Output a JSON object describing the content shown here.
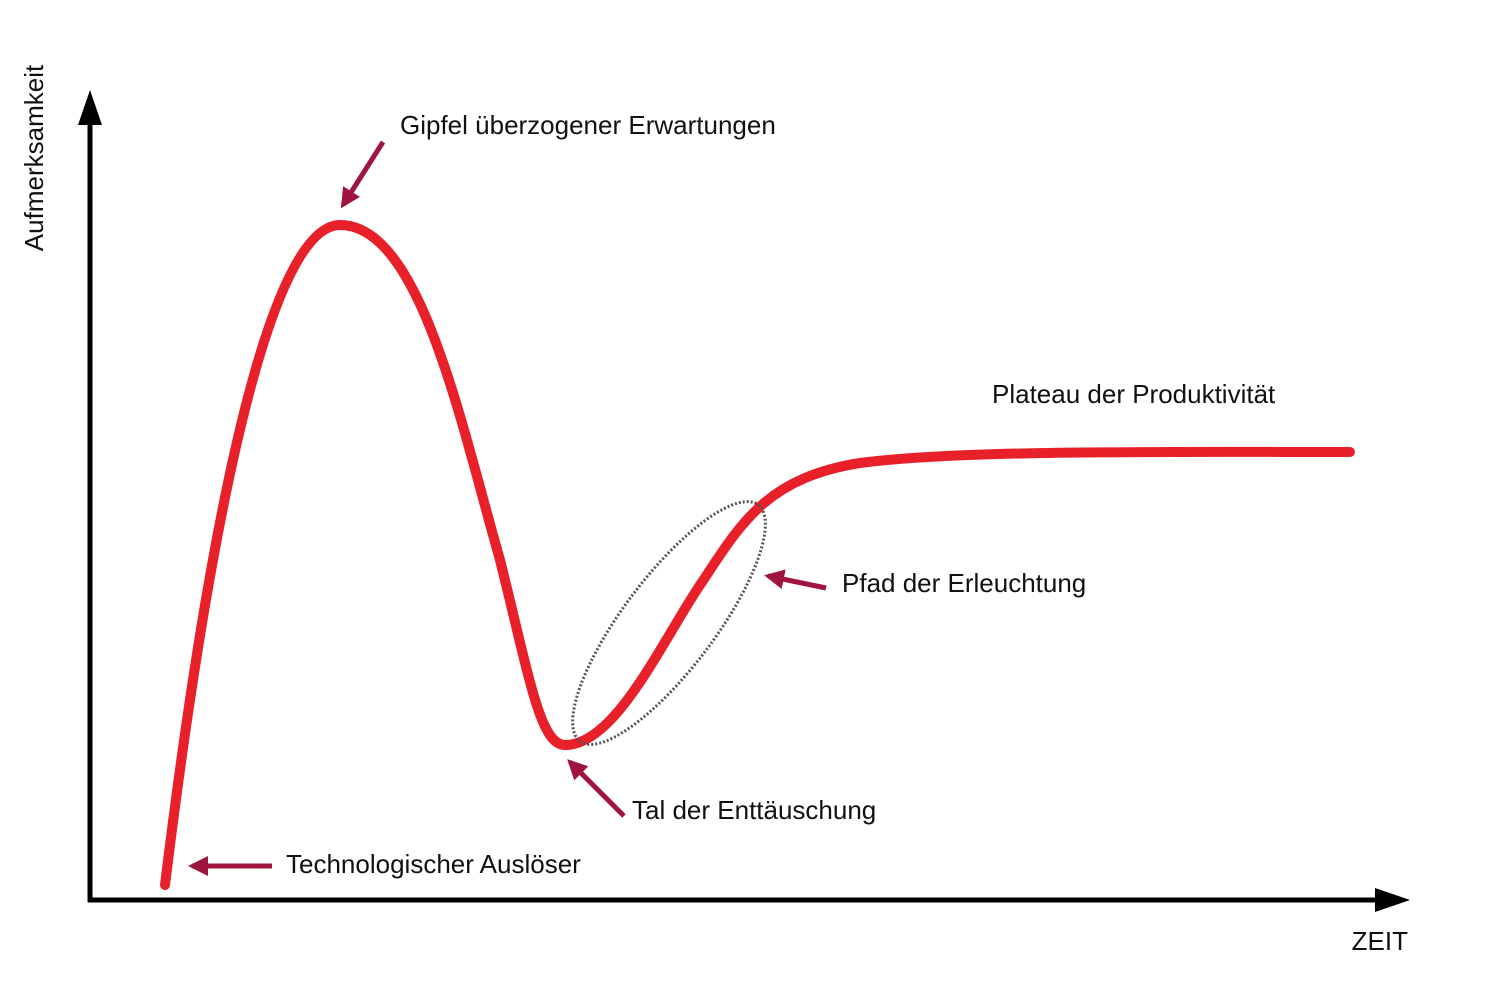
{
  "axes": {
    "y_label": "Aufmerksamkeit",
    "x_label": "ZEIT"
  },
  "phases": [
    {
      "label": "Technologischer Auslöser"
    },
    {
      "label": "Gipfel überzogener Erwartungen"
    },
    {
      "label": "Tal der Enttäuschung"
    },
    {
      "label": "Pfad der Erleuchtung"
    },
    {
      "label": "Plateau der Produktivität"
    }
  ]
}
